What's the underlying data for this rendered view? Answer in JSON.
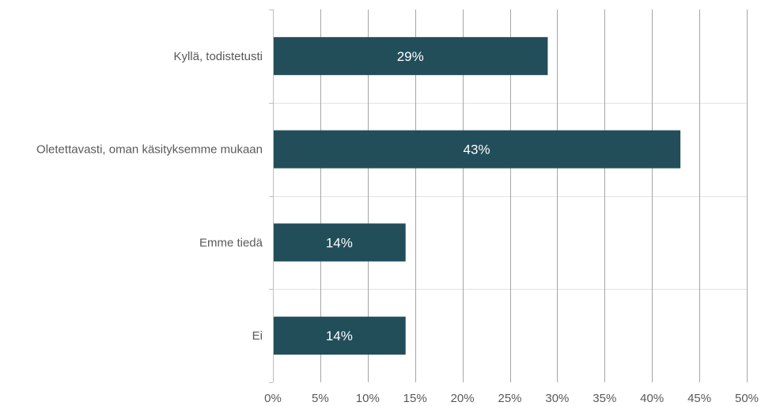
{
  "chart_data": {
    "type": "bar",
    "orientation": "horizontal",
    "categories": [
      "Kyllä, todistetusti",
      "Oletettavasti, oman käsityksemme mukaan",
      "Emme tiedä",
      "Ei"
    ],
    "values": [
      29,
      43,
      14,
      14
    ],
    "value_labels": [
      "29%",
      "43%",
      "14%",
      "14%"
    ],
    "title": "",
    "xlabel": "",
    "ylabel": "",
    "xlim": [
      0,
      50
    ],
    "x_ticks": [
      0,
      5,
      10,
      15,
      20,
      25,
      30,
      35,
      40,
      45,
      50
    ],
    "x_tick_labels": [
      "0%",
      "5%",
      "10%",
      "15%",
      "20%",
      "25%",
      "30%",
      "35%",
      "40%",
      "45%",
      "50%"
    ],
    "grid": true,
    "legend": "none"
  },
  "colors": {
    "bar": "#224e5a",
    "grid_vertical": "#a6a6a6",
    "grid_horizontal": "#e3e3e3",
    "axis": "#bfbfbf",
    "label_text": "#595959",
    "bar_label_text": "#ffffff"
  }
}
